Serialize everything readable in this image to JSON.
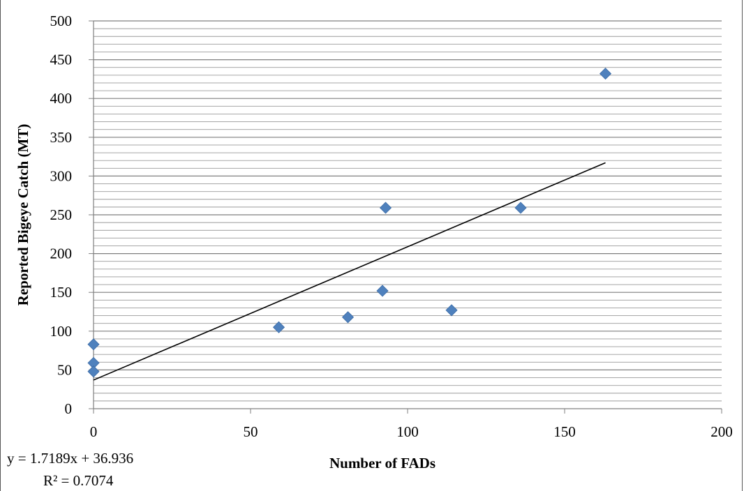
{
  "chart_data": {
    "type": "scatter",
    "title": "",
    "xlabel": "Number of FADs",
    "ylabel": "Reported Bigeye Catch (MT)",
    "xlim": [
      0,
      200
    ],
    "ylim": [
      0,
      500
    ],
    "x_ticks": [
      0,
      50,
      100,
      150,
      200
    ],
    "y_ticks": [
      0,
      50,
      100,
      150,
      200,
      250,
      300,
      350,
      400,
      450,
      500
    ],
    "grid": "horizontal minor, every 10",
    "legend": "none",
    "marker": "diamond",
    "marker_color": "#4F81BD",
    "series": [
      {
        "points": [
          {
            "x": 0,
            "y": 83
          },
          {
            "x": 0,
            "y": 59
          },
          {
            "x": 0,
            "y": 48
          },
          {
            "x": 59,
            "y": 105
          },
          {
            "x": 81,
            "y": 118
          },
          {
            "x": 92,
            "y": 152
          },
          {
            "x": 93,
            "y": 259
          },
          {
            "x": 114,
            "y": 127
          },
          {
            "x": 136,
            "y": 259
          },
          {
            "x": 163,
            "y": 432
          }
        ]
      }
    ],
    "trendline": {
      "type": "linear",
      "slope": 1.7189,
      "intercept": 36.936,
      "x_range": [
        0,
        163
      ],
      "color": "#000000",
      "equation": "y = 1.7189x + 36.936",
      "r_squared": "R² = 0.7074"
    }
  }
}
